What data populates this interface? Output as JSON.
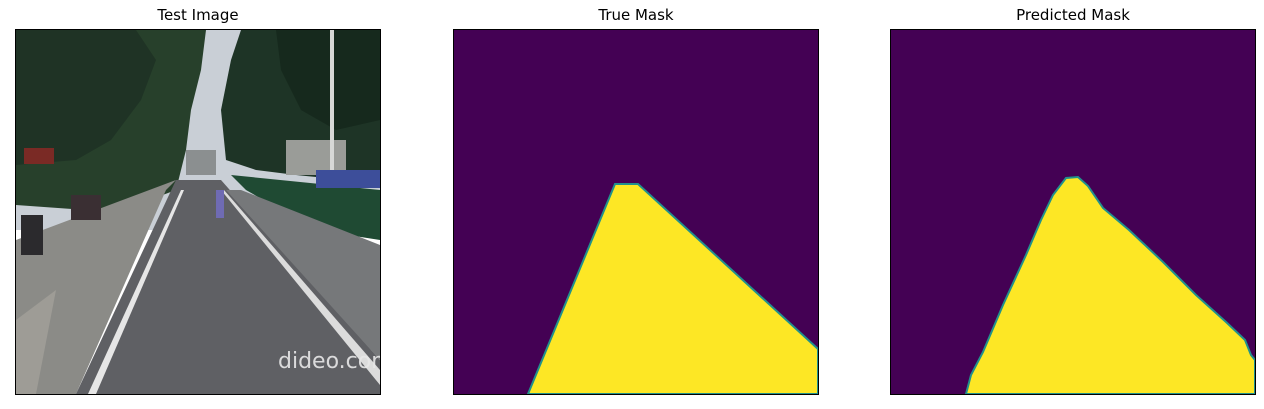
{
  "panels": [
    {
      "title": "Test Image"
    },
    {
      "title": "True Mask"
    },
    {
      "title": "Predicted Mask"
    }
  ],
  "colors": {
    "mask_background": "#440154",
    "mask_foreground": "#fde725",
    "mask_edge": "#21918c"
  },
  "watermark_text": "dideo.com"
}
